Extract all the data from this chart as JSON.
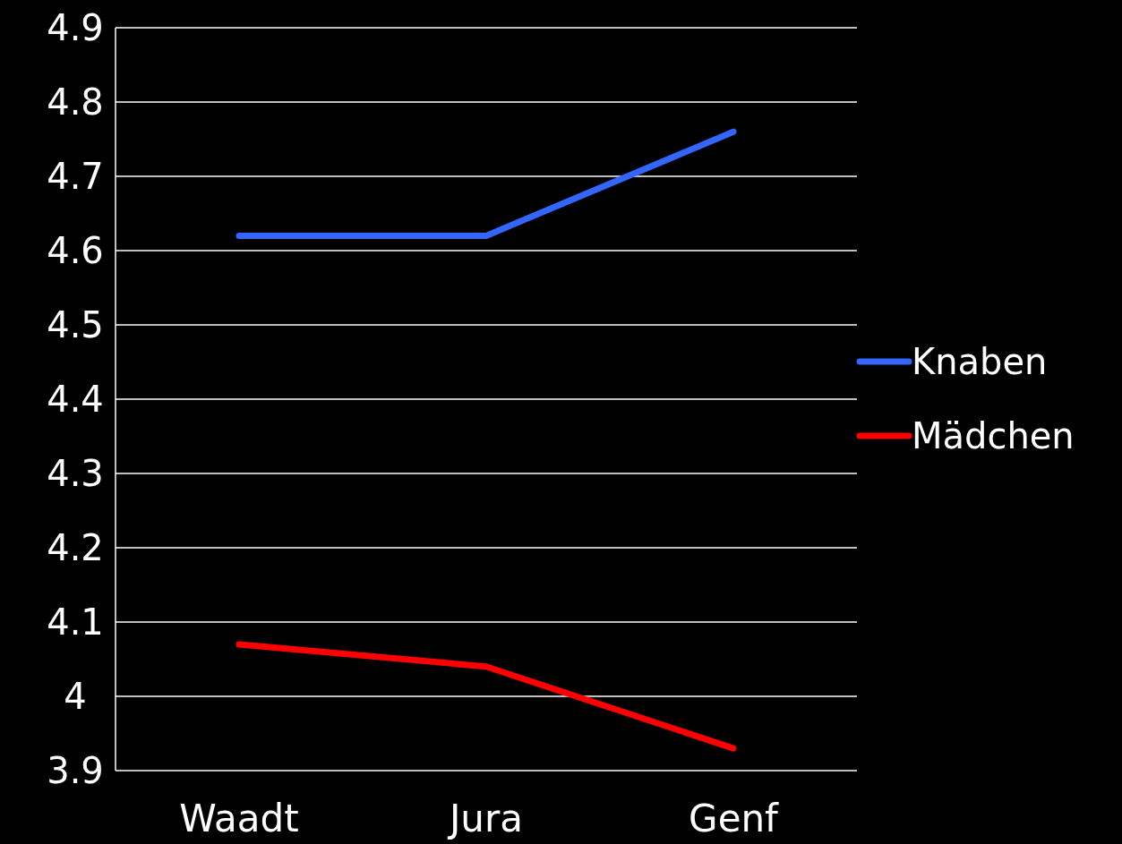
{
  "chart_data": {
    "type": "line",
    "categories": [
      "Waadt",
      "Jura",
      "Genf"
    ],
    "series": [
      {
        "name": "Knaben",
        "color": "#3366ff",
        "values": [
          4.62,
          4.62,
          4.76
        ]
      },
      {
        "name": "Mädchen",
        "color": "#ff0000",
        "values": [
          4.07,
          4.04,
          3.93
        ]
      }
    ],
    "ylim": [
      3.9,
      4.9
    ],
    "yticks": [
      3.9,
      4,
      4.1,
      4.2,
      4.3,
      4.4,
      4.5,
      4.6,
      4.7,
      4.8,
      4.9
    ],
    "grid": "y",
    "legend": "right",
    "marker": "none",
    "line_style": "solid"
  }
}
